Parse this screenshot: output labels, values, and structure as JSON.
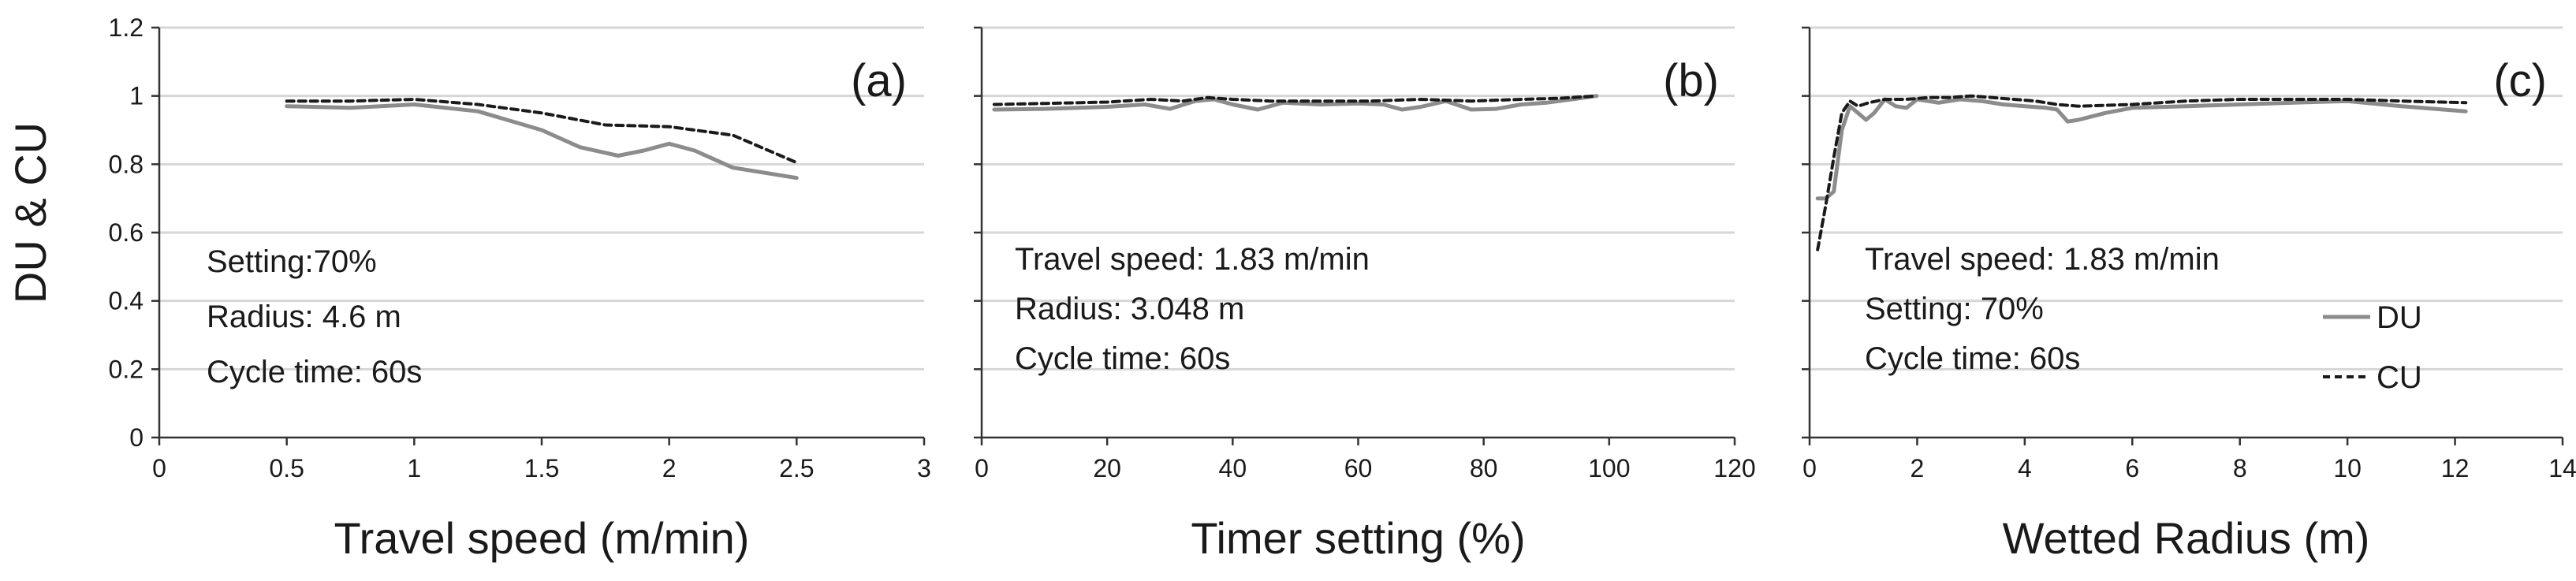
{
  "y_axis": {
    "label": "DU & CU"
  },
  "legend": {
    "placement": "right-middle of panel (c)",
    "entries": [
      "DU",
      "CU"
    ]
  },
  "colors": {
    "DU": "#8c8c8c",
    "CU": "#1a1a1a",
    "grid": "#d6d6d6",
    "axis": "#333333"
  },
  "chart_data": [
    {
      "type": "line",
      "panel": "(a)",
      "xlabel": "Travel speed (m/min)",
      "ylabel": "DU & CU",
      "xlim": [
        0,
        3
      ],
      "ylim": [
        0,
        1.2
      ],
      "x_ticks": [
        "0",
        "0.5",
        "1",
        "1.5",
        "2",
        "2.5",
        "3"
      ],
      "y_ticks": [
        "0",
        "0.2",
        "0.4",
        "0.6",
        "0.8",
        "1",
        "1.2"
      ],
      "grid": "horizontal",
      "notes": [
        "Setting:70%",
        "Radius:  4.6 m",
        "Cycle time: 60s"
      ],
      "series": [
        {
          "name": "DU",
          "style": "solid",
          "x": [
            0.5,
            0.75,
            1.0,
            1.25,
            1.5,
            1.65,
            1.8,
            1.9,
            2.0,
            2.1,
            2.25,
            2.5
          ],
          "y": [
            0.97,
            0.965,
            0.975,
            0.955,
            0.9,
            0.85,
            0.825,
            0.84,
            0.86,
            0.84,
            0.79,
            0.76
          ]
        },
        {
          "name": "CU",
          "style": "dashed",
          "x": [
            0.5,
            0.75,
            1.0,
            1.25,
            1.5,
            1.75,
            2.0,
            2.25,
            2.5
          ],
          "y": [
            0.985,
            0.985,
            0.99,
            0.975,
            0.95,
            0.915,
            0.91,
            0.885,
            0.805
          ]
        }
      ]
    },
    {
      "type": "line",
      "panel": "(b)",
      "xlabel": "Timer setting (%)",
      "xlim": [
        0,
        120
      ],
      "ylim": [
        0,
        1.2
      ],
      "x_ticks": [
        "0",
        "20",
        "40",
        "60",
        "80",
        "100",
        "120"
      ],
      "grid": "horizontal",
      "notes": [
        "Travel speed: 1.83 m/min",
        "Radius: 3.048 m",
        "Cycle time: 60s"
      ],
      "series": [
        {
          "name": "DU",
          "style": "solid",
          "x": [
            2,
            10,
            20,
            26,
            30,
            34,
            37,
            40,
            44,
            48,
            54,
            60,
            64,
            67,
            70,
            74,
            78,
            82,
            86,
            90,
            94,
            98
          ],
          "y": [
            0.96,
            0.962,
            0.968,
            0.975,
            0.962,
            0.985,
            0.99,
            0.975,
            0.96,
            0.98,
            0.975,
            0.978,
            0.975,
            0.96,
            0.968,
            0.985,
            0.96,
            0.962,
            0.975,
            0.98,
            0.99,
            1.0
          ]
        },
        {
          "name": "CU",
          "style": "dashed",
          "x": [
            2,
            10,
            20,
            27,
            32,
            36,
            40,
            46,
            54,
            62,
            70,
            78,
            86,
            92,
            98
          ],
          "y": [
            0.975,
            0.978,
            0.982,
            0.99,
            0.985,
            0.995,
            0.99,
            0.985,
            0.985,
            0.985,
            0.99,
            0.985,
            0.99,
            0.993,
            1.0
          ]
        }
      ]
    },
    {
      "type": "line",
      "panel": "(c)",
      "xlabel": "Wetted Radius (m)",
      "xlim": [
        0,
        14
      ],
      "ylim": [
        0,
        1.2
      ],
      "x_ticks": [
        "0",
        "2",
        "4",
        "6",
        "8",
        "10",
        "12",
        "14"
      ],
      "grid": "horizontal",
      "notes": [
        "Travel speed: 1.83 m/min",
        "Setting: 70%",
        "Cycle time: 60s"
      ],
      "series": [
        {
          "name": "DU",
          "style": "solid",
          "x": [
            0.15,
            0.3,
            0.45,
            0.6,
            0.75,
            0.9,
            1.05,
            1.2,
            1.4,
            1.6,
            1.8,
            2.0,
            2.4,
            2.8,
            3.2,
            3.6,
            4.0,
            4.4,
            4.6,
            4.8,
            5.0,
            5.5,
            6.0,
            7.0,
            8.0,
            9.0,
            10.0,
            11.0,
            12.2
          ],
          "y": [
            0.7,
            0.7,
            0.72,
            0.9,
            0.97,
            0.95,
            0.93,
            0.95,
            0.99,
            0.97,
            0.965,
            0.99,
            0.98,
            0.99,
            0.985,
            0.975,
            0.97,
            0.965,
            0.96,
            0.925,
            0.93,
            0.95,
            0.965,
            0.97,
            0.975,
            0.98,
            0.985,
            0.97,
            0.955
          ]
        },
        {
          "name": "CU",
          "style": "dashed",
          "x": [
            0.15,
            0.3,
            0.45,
            0.6,
            0.75,
            0.9,
            1.1,
            1.4,
            1.8,
            2.2,
            2.6,
            3.0,
            3.4,
            3.8,
            4.2,
            4.6,
            5.0,
            6.0,
            7.0,
            8.0,
            9.0,
            10.0,
            11.0,
            12.2
          ],
          "y": [
            0.55,
            0.68,
            0.82,
            0.95,
            0.985,
            0.97,
            0.98,
            0.99,
            0.99,
            0.995,
            0.995,
            1.0,
            0.995,
            0.99,
            0.985,
            0.975,
            0.97,
            0.975,
            0.985,
            0.99,
            0.99,
            0.99,
            0.985,
            0.98
          ]
        }
      ]
    }
  ]
}
